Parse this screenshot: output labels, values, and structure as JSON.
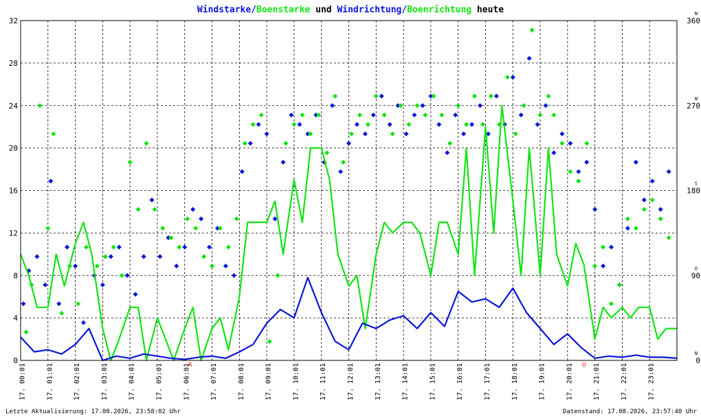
{
  "colors": {
    "wind": "#0a14d8",
    "gust": "#10e410",
    "accent_red": "#e01010",
    "grid": "#000000",
    "text": "#000000"
  },
  "title": {
    "part1": "Windstarke/",
    "part2": "Boenstarke",
    "part3": " und ",
    "part4": "Windrichtung/",
    "part5": "Boenrichtung",
    "part6": " heute"
  },
  "footer": {
    "left": "Letzte Aktualisierung: 17.08.2026, 23:58:02 Uhr",
    "right": "Datenstand: 17.08.2026, 23:57:40 Uhr"
  },
  "markers": {
    "sunrise": "A",
    "sunset": "U"
  },
  "chart_data": {
    "type": "line",
    "x_labels": [
      "17. 00:01",
      "17. 01:01",
      "17. 02:01",
      "17. 03:01",
      "17. 04:01",
      "17. 05:01",
      "17. 06:01",
      "17. 07:01",
      "17. 08:01",
      "17. 09:01",
      "17. 10:01",
      "17. 11:01",
      "17. 12:01",
      "17. 13:01",
      "17. 14:01",
      "17. 15:01",
      "17. 16:01",
      "17. 17:01",
      "17. 18:01",
      "17. 19:01",
      "17. 20:01",
      "17. 21:01",
      "17. 22:01",
      "17. 23:01"
    ],
    "xlim": [
      0,
      24
    ],
    "ylim_left": [
      0,
      32
    ],
    "y_ticks_left": [
      "0",
      "4",
      "8",
      "12",
      "16",
      "20",
      "24",
      "28",
      "32"
    ],
    "ylim_right": [
      0,
      360
    ],
    "y_ticks_right": [
      {
        "value": 0,
        "label": "0",
        "dir": "N"
      },
      {
        "value": 90,
        "label": "90",
        "dir": "O"
      },
      {
        "value": 180,
        "label": "180",
        "dir": "S"
      },
      {
        "value": 270,
        "label": "270",
        "dir": "W"
      },
      {
        "value": 360,
        "label": "360",
        "dir": "N"
      }
    ],
    "sunrise_hour": 6.2,
    "sunset_hour": 20.6,
    "grid": true,
    "series": [
      {
        "name": "Windstarke",
        "kind": "line",
        "x": [
          0,
          0.5,
          1,
          1.5,
          2,
          2.5,
          3,
          3.5,
          4,
          4.5,
          5,
          5.5,
          6,
          6.5,
          7,
          7.5,
          8,
          8.5,
          9,
          9.5,
          10,
          10.5,
          11,
          11.5,
          12,
          12.5,
          13,
          13.5,
          14,
          14.5,
          15,
          15.5,
          16,
          16.5,
          17,
          17.5,
          18,
          18.5,
          19,
          19.5,
          20,
          20.5,
          21,
          21.5,
          22,
          22.5,
          23,
          23.5,
          24
        ],
        "values": [
          2.2,
          0.8,
          1.0,
          0.6,
          1.5,
          3.0,
          0,
          0.4,
          0.2,
          0.6,
          0.4,
          0.2,
          0.1,
          0.3,
          0.4,
          0.2,
          0.8,
          1.5,
          3.5,
          4.8,
          4.0,
          7.8,
          4.5,
          1.8,
          1.0,
          3.5,
          3.0,
          3.8,
          4.2,
          3.0,
          4.5,
          3.2,
          6.5,
          5.5,
          5.8,
          5.0,
          6.8,
          4.5,
          3.0,
          1.5,
          2.5,
          1.2,
          0.2,
          0.4,
          0.3,
          0.5,
          0.3,
          0.3,
          0.2
        ]
      },
      {
        "name": "Boenstarke",
        "kind": "line",
        "x": [
          0,
          0.3,
          0.6,
          1,
          1.3,
          1.6,
          2,
          2.3,
          2.6,
          3,
          3.3,
          3.6,
          4,
          4.3,
          4.6,
          5,
          5.3,
          5.6,
          6,
          6.3,
          6.6,
          7,
          7.3,
          7.6,
          8,
          8.3,
          8.6,
          9,
          9.3,
          9.6,
          10,
          10.3,
          10.6,
          11,
          11.3,
          11.6,
          12,
          12.3,
          12.6,
          13,
          13.3,
          13.6,
          14,
          14.3,
          14.6,
          15,
          15.3,
          15.6,
          16,
          16.3,
          16.6,
          17,
          17.3,
          17.6,
          18,
          18.3,
          18.6,
          19,
          19.3,
          19.6,
          20,
          20.3,
          20.6,
          21,
          21.3,
          21.6,
          22,
          22.3,
          22.6,
          23,
          23.3,
          23.6,
          24
        ],
        "values": [
          10,
          8,
          5,
          5,
          10,
          7,
          11,
          13,
          10,
          3,
          0,
          2,
          5,
          5,
          0,
          4,
          2,
          0,
          3,
          5,
          0,
          3,
          4,
          1,
          6,
          13,
          13,
          13,
          15,
          10,
          17,
          13,
          20,
          20,
          17,
          10,
          7,
          8,
          3,
          10,
          13,
          12,
          13,
          13,
          12,
          8,
          13,
          13,
          10,
          20,
          8,
          22,
          12,
          24,
          15,
          8,
          20,
          8,
          20,
          10,
          7,
          11,
          9,
          2,
          5,
          4,
          5,
          4,
          5,
          5,
          2,
          3,
          3
        ]
      },
      {
        "name": "Windrichtung",
        "kind": "scatter",
        "x": [
          0.1,
          0.3,
          0.6,
          0.9,
          1.1,
          1.4,
          1.7,
          2.0,
          2.3,
          2.7,
          3.0,
          3.3,
          3.6,
          3.9,
          4.2,
          4.5,
          4.8,
          5.1,
          5.4,
          5.7,
          6.0,
          6.3,
          6.6,
          6.9,
          7.2,
          7.5,
          7.8,
          8.1,
          8.4,
          8.7,
          9.0,
          9.3,
          9.6,
          9.9,
          10.2,
          10.5,
          10.8,
          11.1,
          11.4,
          11.7,
          12.0,
          12.3,
          12.6,
          12.9,
          13.2,
          13.5,
          13.8,
          14.1,
          14.4,
          14.7,
          15.0,
          15.3,
          15.6,
          15.9,
          16.2,
          16.5,
          16.8,
          17.1,
          17.4,
          17.7,
          18.0,
          18.3,
          18.6,
          18.9,
          19.2,
          19.5,
          19.8,
          20.1,
          20.4,
          20.7,
          21.0,
          21.3,
          21.6,
          21.9,
          22.2,
          22.5,
          22.8,
          23.1,
          23.4,
          23.7
        ],
        "values": [
          60,
          95,
          110,
          80,
          190,
          60,
          120,
          100,
          40,
          90,
          80,
          110,
          120,
          90,
          70,
          110,
          170,
          110,
          130,
          100,
          120,
          160,
          150,
          120,
          140,
          100,
          90,
          200,
          230,
          250,
          240,
          150,
          210,
          260,
          250,
          240,
          260,
          210,
          270,
          200,
          230,
          250,
          240,
          260,
          280,
          250,
          270,
          240,
          260,
          270,
          280,
          250,
          220,
          260,
          240,
          250,
          270,
          240,
          280,
          250,
          300,
          260,
          320,
          250,
          270,
          220,
          240,
          230,
          200,
          210,
          160,
          100,
          120,
          80,
          140,
          210,
          170,
          190,
          160,
          200
        ]
      },
      {
        "name": "Boenrichtung",
        "kind": "scatter",
        "x": [
          0.2,
          0.4,
          0.7,
          1.0,
          1.2,
          1.5,
          1.8,
          2.1,
          2.4,
          2.8,
          3.1,
          3.4,
          3.7,
          4.0,
          4.3,
          4.6,
          4.9,
          5.2,
          5.5,
          5.8,
          6.1,
          6.4,
          6.7,
          7.0,
          7.3,
          7.6,
          7.9,
          8.2,
          8.5,
          8.8,
          9.1,
          9.4,
          9.7,
          10.0,
          10.3,
          10.6,
          10.9,
          11.2,
          11.5,
          11.8,
          12.1,
          12.4,
          12.7,
          13.0,
          13.3,
          13.6,
          13.9,
          14.2,
          14.5,
          14.8,
          15.1,
          15.4,
          15.7,
          16.0,
          16.3,
          16.6,
          16.9,
          17.2,
          17.5,
          17.8,
          18.1,
          18.4,
          18.7,
          19.0,
          19.3,
          19.5,
          19.8,
          20.1,
          20.4,
          20.7,
          21.0,
          21.3,
          21.6,
          21.9,
          22.2,
          22.5,
          22.8,
          23.1,
          23.4,
          23.7
        ],
        "values": [
          30,
          80,
          270,
          140,
          240,
          50,
          100,
          60,
          120,
          100,
          110,
          120,
          90,
          210,
          160,
          230,
          160,
          140,
          130,
          120,
          150,
          140,
          110,
          100,
          140,
          120,
          150,
          230,
          250,
          260,
          20,
          90,
          230,
          250,
          260,
          240,
          260,
          220,
          280,
          210,
          240,
          260,
          250,
          280,
          260,
          240,
          270,
          250,
          270,
          260,
          280,
          260,
          230,
          270,
          250,
          280,
          250,
          280,
          250,
          300,
          240,
          270,
          350,
          260,
          280,
          260,
          230,
          200,
          190,
          230,
          100,
          120,
          60,
          80,
          150,
          140,
          160,
          170,
          150,
          130
        ]
      }
    ]
  }
}
